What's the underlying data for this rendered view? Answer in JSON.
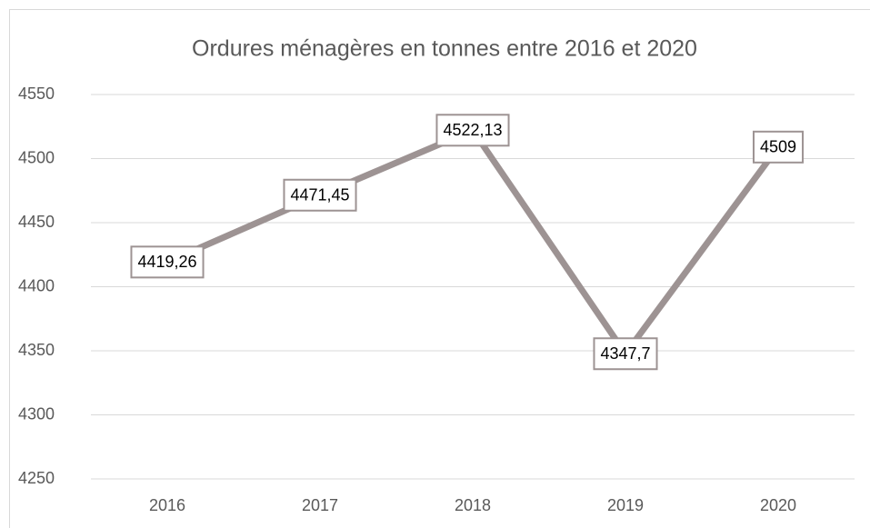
{
  "chart_data": {
    "type": "line",
    "title": "Ordures ménagères en tonnes entre 2016 et 2020",
    "categories": [
      "2016",
      "2017",
      "2018",
      "2019",
      "2020"
    ],
    "series": [
      {
        "name": "Ordures ménagères",
        "color": "#9d9393",
        "values": [
          4419.26,
          4471.45,
          4522.13,
          4347.7,
          4509
        ],
        "value_labels": [
          "4419,26",
          "4471,45",
          "4522,13",
          "4347,7",
          "4509"
        ]
      }
    ],
    "ylim": [
      4250,
      4550
    ],
    "yticks": [
      4250,
      4300,
      4350,
      4400,
      4450,
      4500,
      4550
    ],
    "grid": true
  }
}
